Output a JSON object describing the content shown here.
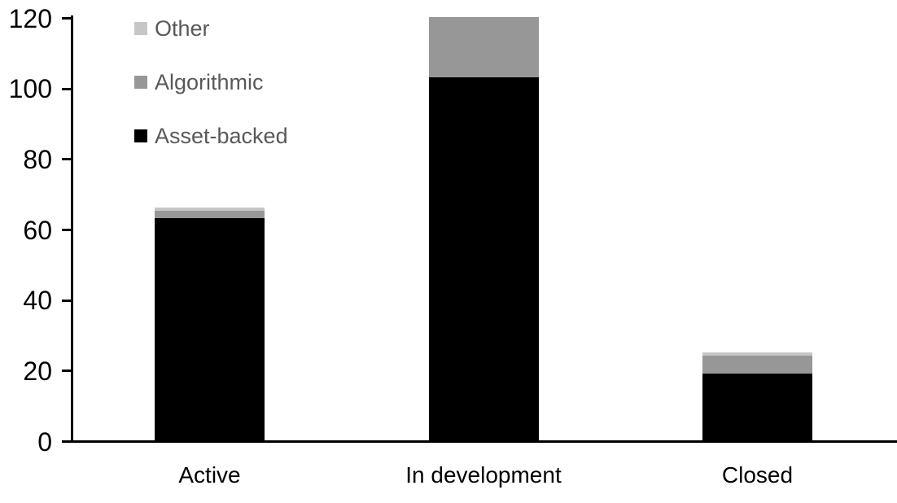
{
  "chart_data": {
    "type": "bar",
    "stacked": true,
    "title": "",
    "xlabel": "",
    "ylabel": "",
    "categories": [
      "Active",
      "In development",
      "Closed"
    ],
    "series": [
      {
        "name": "Asset-backed",
        "color": "#000000",
        "values": [
          63,
          103,
          19
        ]
      },
      {
        "name": "Algorithmic",
        "color": "#979797",
        "values": [
          2,
          17,
          5
        ]
      },
      {
        "name": "Other",
        "color": "#c6c6c6",
        "values": [
          1,
          0,
          1
        ]
      }
    ],
    "stack_totals": [
      66,
      120,
      25
    ],
    "ylim": [
      0,
      120
    ],
    "yticks": [
      0,
      20,
      40,
      60,
      80,
      100,
      120
    ],
    "grid": false,
    "legend_position": "inside-top-left",
    "legend_order_top_to_bottom": [
      "Other",
      "Algorithmic",
      "Asset-backed"
    ],
    "colors": {
      "background": "#ffffff",
      "axis": "#000000",
      "axis_text": "#000000",
      "legend_text": "#595959"
    }
  }
}
